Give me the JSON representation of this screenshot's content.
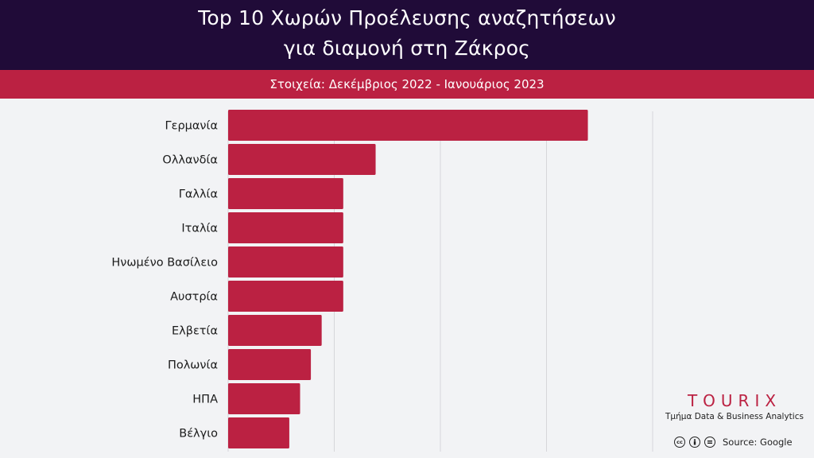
{
  "header": {
    "title_line1": "Top 10 Χωρών Προέλευσης αναζητήσεων",
    "title_line2": "για διαμονή στη Ζάκρος",
    "subtitle": "Στοιχεία: Δεκέμβριος 2022 - Ιανουάριος 2023"
  },
  "chart_data": {
    "type": "bar",
    "orientation": "horizontal",
    "categories": [
      "Γερμανία",
      "Ολλανδία",
      "Γαλλία",
      "Ιταλία",
      "Ηνωμένο Βασίλειο",
      "Αυστρία",
      "Ελβετία",
      "Πολωνία",
      "ΗΠΑ",
      "Βέλγιο"
    ],
    "values": [
      100,
      41,
      32,
      32,
      32,
      32,
      26,
      23,
      20,
      17
    ],
    "xlim": [
      0,
      118
    ],
    "grid": true,
    "bar_color": "#bb2142",
    "axis_labels_visible": false
  },
  "brand": {
    "logo": "TOURIX",
    "tagline": "Τμήμα Data & Business Analytics"
  },
  "footer": {
    "license_icons": [
      "cc-icon",
      "person-icon",
      "equals-icon"
    ],
    "source": "Source: Google"
  },
  "colors": {
    "header_bg": "#200b38",
    "subheader_bg": "#bb2142",
    "page_bg": "#f2f3f5"
  }
}
